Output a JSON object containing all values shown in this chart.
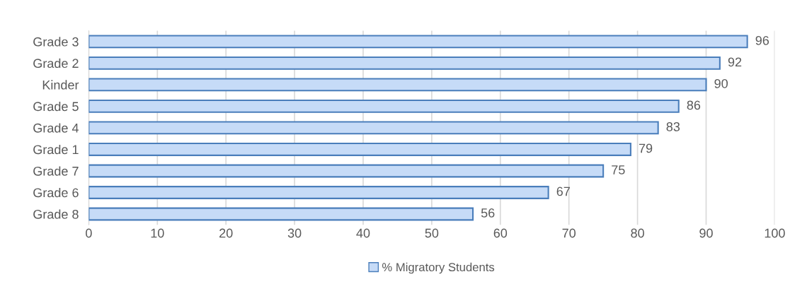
{
  "chart_data": {
    "type": "bar",
    "orientation": "horizontal",
    "categories": [
      "Grade 3",
      "Grade 2",
      "Kinder",
      "Grade 5",
      "Grade 4",
      "Grade 1",
      "Grade 7",
      "Grade 6",
      "Grade 8"
    ],
    "series": [
      {
        "name": "% Migratory Students",
        "color": "#c6dbf7",
        "values": [
          96,
          92,
          90,
          86,
          83,
          79,
          75,
          67,
          56
        ]
      }
    ],
    "xlim": [
      0,
      100
    ],
    "xticks": [
      0,
      10,
      20,
      30,
      40,
      50,
      60,
      70,
      80,
      90,
      100
    ],
    "grid": "x",
    "legend": "bottom",
    "data_labels": true
  }
}
